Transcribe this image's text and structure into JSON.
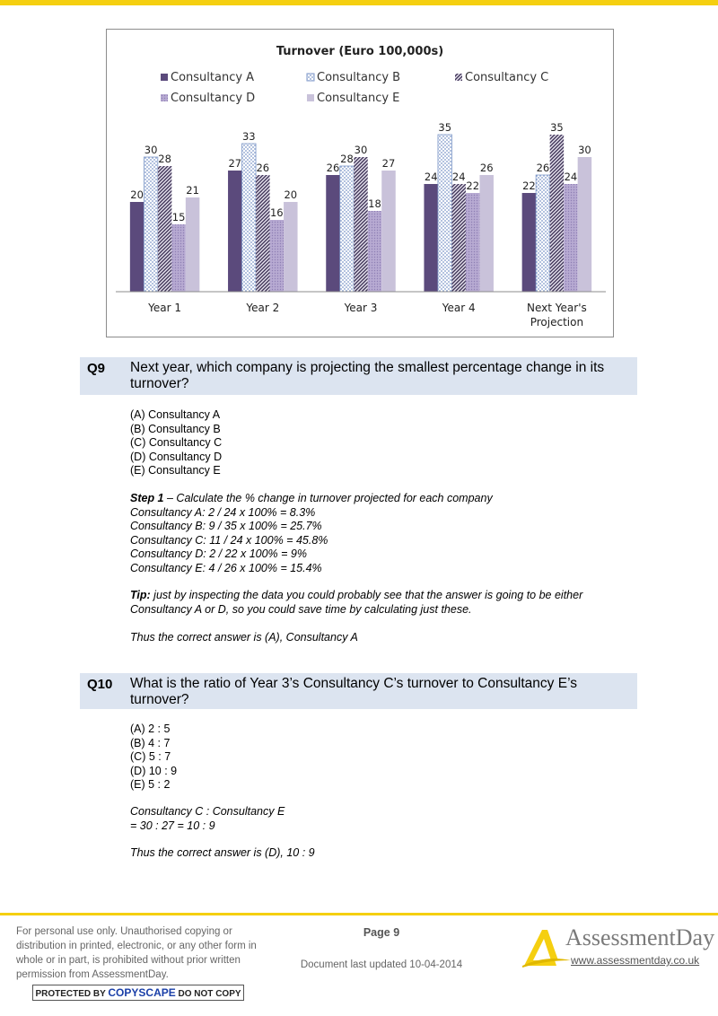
{
  "chart_data": {
    "type": "bar",
    "title": "Turnover (Euro 100,000s)",
    "categories": [
      "Year 1",
      "Year 2",
      "Year 3",
      "Year 4",
      "Next Year's Projection"
    ],
    "category_lines": [
      [
        "Year 1"
      ],
      [
        "Year 2"
      ],
      [
        "Year 3"
      ],
      [
        "Year 4"
      ],
      [
        "Next Year's",
        "Projection"
      ]
    ],
    "series": [
      {
        "name": "Consultancy A",
        "values": [
          20,
          27,
          26,
          24,
          22
        ],
        "color": "#5b4a7c",
        "pattern": "solid"
      },
      {
        "name": "Consultancy B",
        "values": [
          30,
          33,
          28,
          35,
          26
        ],
        "color": "#a9bde0",
        "pattern": "dots"
      },
      {
        "name": "Consultancy C",
        "values": [
          28,
          26,
          30,
          24,
          35
        ],
        "color": "#54476e",
        "pattern": "diagonal"
      },
      {
        "name": "Consultancy D",
        "values": [
          15,
          16,
          18,
          22,
          24
        ],
        "color": "#b0a3cc",
        "pattern": "fine-dots"
      },
      {
        "name": "Consultancy E",
        "values": [
          21,
          20,
          27,
          26,
          30
        ],
        "color": "#c9c2da",
        "pattern": "solid"
      }
    ],
    "ylim": [
      0,
      40
    ],
    "grid": false,
    "legend": "top"
  },
  "q9": {
    "number": "Q9",
    "question": "Next year, which company is projecting the smallest percentage change in its turnover?",
    "options": [
      "(A) Consultancy A",
      "(B) Consultancy B",
      "(C) Consultancy C",
      "(D) Consultancy D",
      "(E) Consultancy E"
    ],
    "step_label": "Step 1",
    "step_text": " – Calculate the % change in turnover projected for each company",
    "calcs": [
      "Consultancy A: 2 / 24 x 100% = 8.3%",
      "Consultancy B: 9 / 35 x 100% = 25.7%",
      "Consultancy C: 11 / 24 x 100% = 45.8%",
      "Consultancy D: 2 / 22 x 100% = 9%",
      "Consultancy E: 4 / 26 x 100% = 15.4%"
    ],
    "tip_label": "Tip:",
    "tip_line1": " just by inspecting the data you could probably see that the answer is going to be either",
    "tip_line2": "Consultancy A or D, so you could save time by calculating just these.",
    "answer": "Thus the correct answer is (A), Consultancy A"
  },
  "q10": {
    "number": "Q10",
    "question": "What is the ratio of Year 3’s Consultancy C’s turnover to Consultancy E’s turnover?",
    "options": [
      "(A) 2 : 5",
      "(B) 4 : 7",
      "(C) 5 : 7",
      "(D) 10 : 9",
      "(E) 5 : 2"
    ],
    "work_line1": "Consultancy C : Consultancy E",
    "work_line2": "= 30 : 27 = 10 : 9",
    "answer": "Thus the correct answer is (D), 10 : 9"
  },
  "footer": {
    "disclaimer": "For personal use only. Unauthorised copying or distribution in printed, electronic, or any other form in whole or in part, is prohibited without prior written permission from AssessmentDay.",
    "copyscape_pre": "PROTECTED BY ",
    "copyscape_brand": "COPYSCAPE",
    "copyscape_post": " DO NOT COPY",
    "page": "Page 9",
    "updated": "Document last updated 10-04-2014",
    "brand": "AssessmentDay",
    "url": "www.assessmentday.co.uk",
    "brand_color": "#f5cf10"
  }
}
